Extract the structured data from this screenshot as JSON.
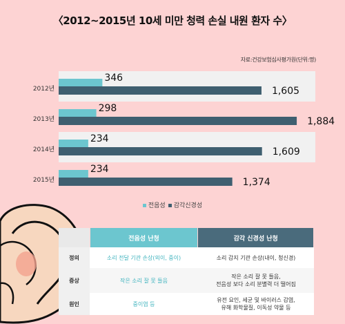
{
  "title": "〈2012~2015년 10세 미만 청력 손실 내원 환자 수〉",
  "source": "자료:건강보험심사평가원(단위:명)",
  "colors": {
    "conductive": "#6cc6cf",
    "sensorineural": "#3f5f70",
    "band": "#f1f1f1"
  },
  "chart_data": {
    "type": "bar",
    "orientation": "horizontal",
    "categories": [
      "2012년",
      "2013년",
      "2014년",
      "2015년"
    ],
    "series": [
      {
        "name": "전음성",
        "values": [
          346,
          298,
          234,
          234
        ]
      },
      {
        "name": "감각신경성",
        "values": [
          1605,
          1884,
          1609,
          1374
        ]
      }
    ],
    "data_labels": [
      [
        "346",
        "298",
        "234",
        "234"
      ],
      [
        "1,605",
        "1,884",
        "1,609",
        "1,374"
      ]
    ],
    "xlim": [
      0,
      1900
    ],
    "legend": "bottom",
    "grid": false
  },
  "legend": [
    {
      "label": "전음성",
      "color": "#6cc6cf"
    },
    {
      "label": "감각신경성",
      "color": "#3f5f70"
    }
  ],
  "table": {
    "headers": [
      "",
      "전음성 난청",
      "감각 신경성 난청"
    ],
    "rows": [
      {
        "label": "정의",
        "conductive": "소리 전달 기관 손상(외이, 중이)",
        "sensorineural": "소리 감지 기관 손상(내이, 청신경)"
      },
      {
        "label": "증상",
        "conductive": "작은 소리 잘 못 들음",
        "sensorineural": "작은 소리 잘 못 들음,\n전음성 보다 소리 분별력 더 떨어짐"
      },
      {
        "label": "원인",
        "conductive": "중이염 등",
        "sensorineural": "유전 요인, 세균 및 바이러스 감염,\n유해 화학물질, 이독성 약물 등"
      }
    ]
  }
}
